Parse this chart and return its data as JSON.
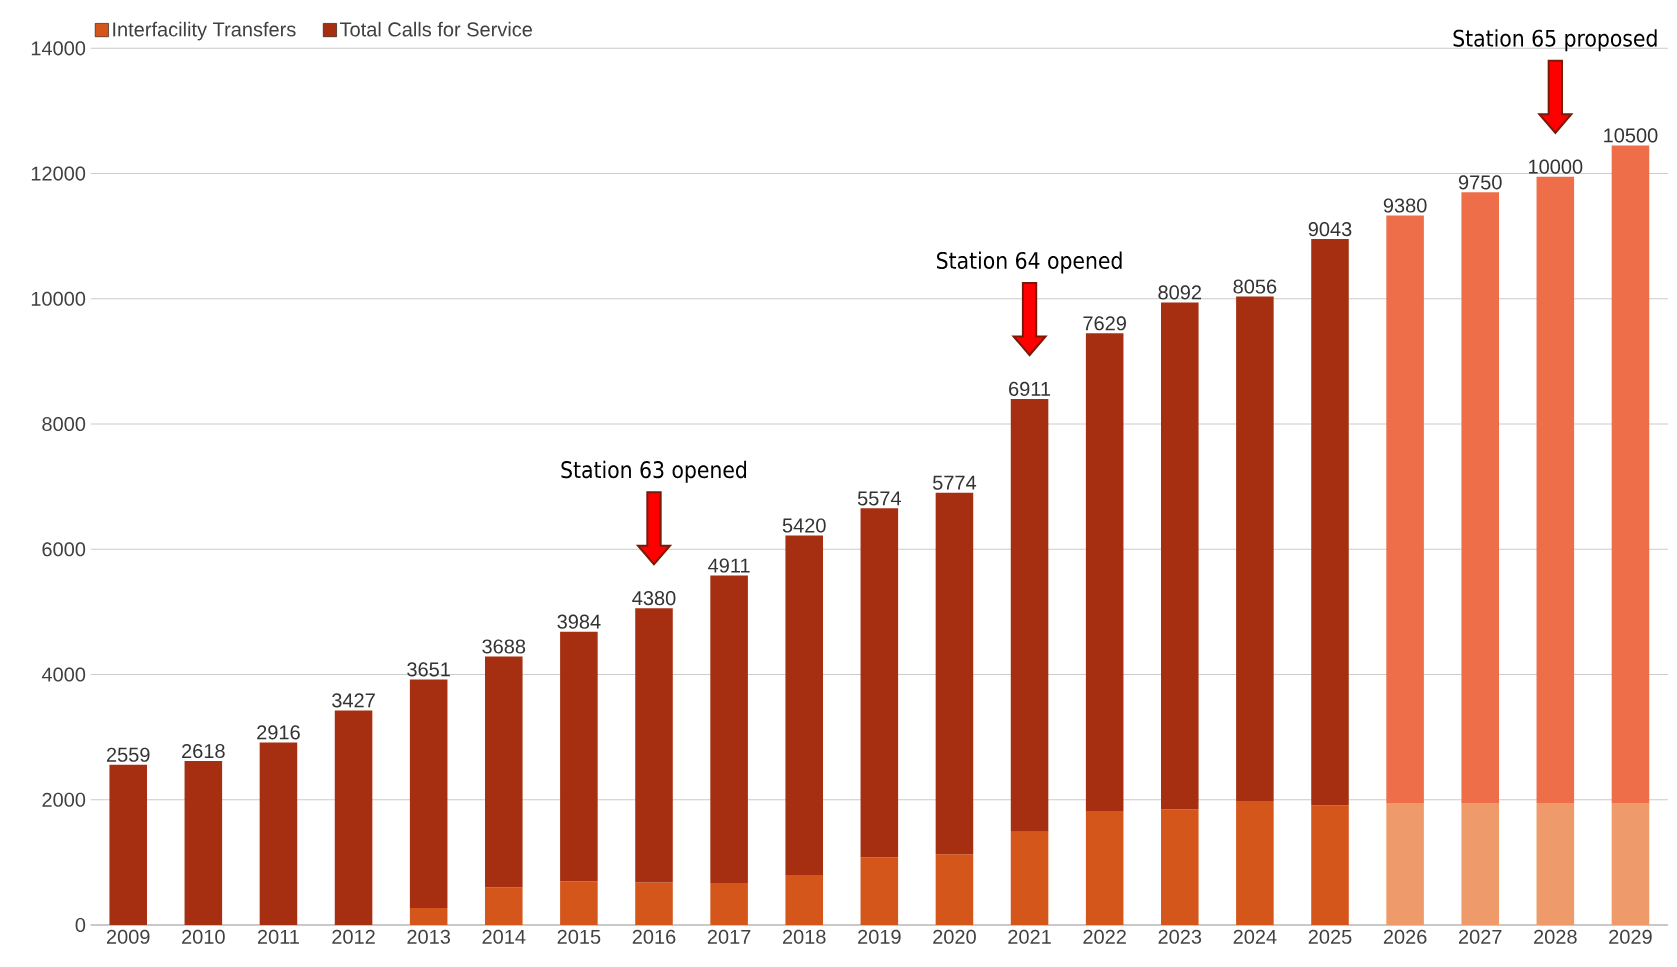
{
  "chart_data": {
    "type": "bar",
    "stacked": true,
    "categories": [
      "2009",
      "2010",
      "2011",
      "2012",
      "2013",
      "2014",
      "2015",
      "2016",
      "2017",
      "2018",
      "2019",
      "2020",
      "2021",
      "2022",
      "2023",
      "2024",
      "2025",
      "2026",
      "2027",
      "2028",
      "2029"
    ],
    "series": [
      {
        "name": "Interfacility Transfers",
        "color": "#d4561a",
        "colors": [
          "#d4561a",
          "#d4561a",
          "#d4561a",
          "#d4561a",
          "#d4561a",
          "#d4561a",
          "#d4561a",
          "#d4561a",
          "#d4561a",
          "#d4561a",
          "#d4561a",
          "#d4561a",
          "#d4561a",
          "#d4561a",
          "#d4561a",
          "#d4561a",
          "#d4561a",
          "#ef9a6a",
          "#ef9a6a",
          "#ef9a6a",
          "#ef9a6a"
        ],
        "values": [
          0,
          0,
          0,
          0,
          270,
          600,
          700,
          680,
          670,
          800,
          1080,
          1130,
          1490,
          1820,
          1850,
          1980,
          1910,
          1950,
          1950,
          1950,
          1950
        ]
      },
      {
        "name": "Total Calls for Service",
        "color": "#a52f10",
        "colors": [
          "#a52f10",
          "#a52f10",
          "#a52f10",
          "#a52f10",
          "#a52f10",
          "#a52f10",
          "#a52f10",
          "#a52f10",
          "#a52f10",
          "#a52f10",
          "#a52f10",
          "#a52f10",
          "#a52f10",
          "#a52f10",
          "#a52f10",
          "#a52f10",
          "#a52f10",
          "#ee6e4a",
          "#ee6e4a",
          "#ee6e4a",
          "#ee6e4a"
        ],
        "values": [
          2559,
          2618,
          2916,
          3427,
          3651,
          3688,
          3984,
          4380,
          4911,
          5420,
          5574,
          5774,
          6911,
          7629,
          8092,
          8056,
          9043,
          9380,
          9750,
          10000,
          10500
        ],
        "value_labels": [
          "2559",
          "2618",
          "2916",
          "3427",
          "3651",
          "3688",
          "3984",
          "4380",
          "4911",
          "5420",
          "5574",
          "5774",
          "6911",
          "7629",
          "8092",
          "8056",
          "9043",
          "9380",
          "9750",
          "10000",
          "10500"
        ]
      }
    ],
    "ylim": [
      0,
      14000
    ],
    "yticks": [
      0,
      2000,
      4000,
      6000,
      8000,
      10000,
      12000,
      14000
    ],
    "grid": "y",
    "legend": "top left",
    "annotations": [
      "Station 63 opened",
      "Station 64 opened",
      "Station 65 proposed"
    ]
  }
}
